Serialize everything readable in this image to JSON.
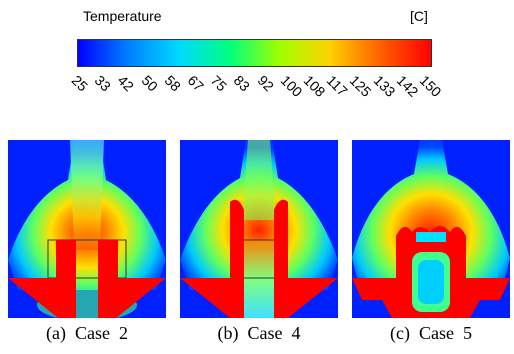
{
  "legend": {
    "title": "Temperature",
    "unit": "[C]",
    "ticks": [
      "25",
      "33",
      "42",
      "50",
      "58",
      "67",
      "75",
      "83",
      "92",
      "100",
      "108",
      "117",
      "125",
      "133",
      "142",
      "150"
    ],
    "colors": [
      "#0000ff",
      "#0080ff",
      "#00d8ff",
      "#00ff80",
      "#a0ff00",
      "#ffd000",
      "#ff6000",
      "#ff0000"
    ]
  },
  "panels": [
    {
      "caption": "(a)  Case  2"
    },
    {
      "caption": "(b)  Case  4"
    },
    {
      "caption": "(c)  Case  5"
    }
  ]
}
